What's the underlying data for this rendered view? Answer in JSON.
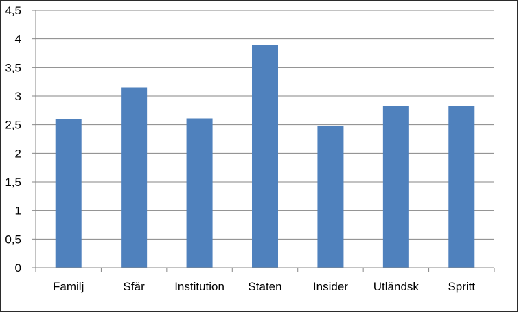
{
  "chart_data": {
    "type": "bar",
    "title": "",
    "xlabel": "",
    "ylabel": "",
    "categories": [
      "Familj",
      "Sfär",
      "Institution",
      "Staten",
      "Insider",
      "Utländsk",
      "Spritt"
    ],
    "values": [
      2.6,
      3.15,
      2.61,
      3.9,
      2.48,
      2.82,
      2.82
    ],
    "ylim": [
      0,
      4.5
    ],
    "yticks": [
      0,
      0.5,
      1,
      1.5,
      2,
      2.5,
      3,
      3.5,
      4,
      4.5
    ],
    "ytick_labels": [
      "0",
      "0,5",
      "1",
      "1,5",
      "2",
      "2,5",
      "3",
      "3,5",
      "4",
      "4,5"
    ],
    "grid": true,
    "legend": "none",
    "bar_color": "#4F81BD",
    "grid_color": "#868686"
  }
}
